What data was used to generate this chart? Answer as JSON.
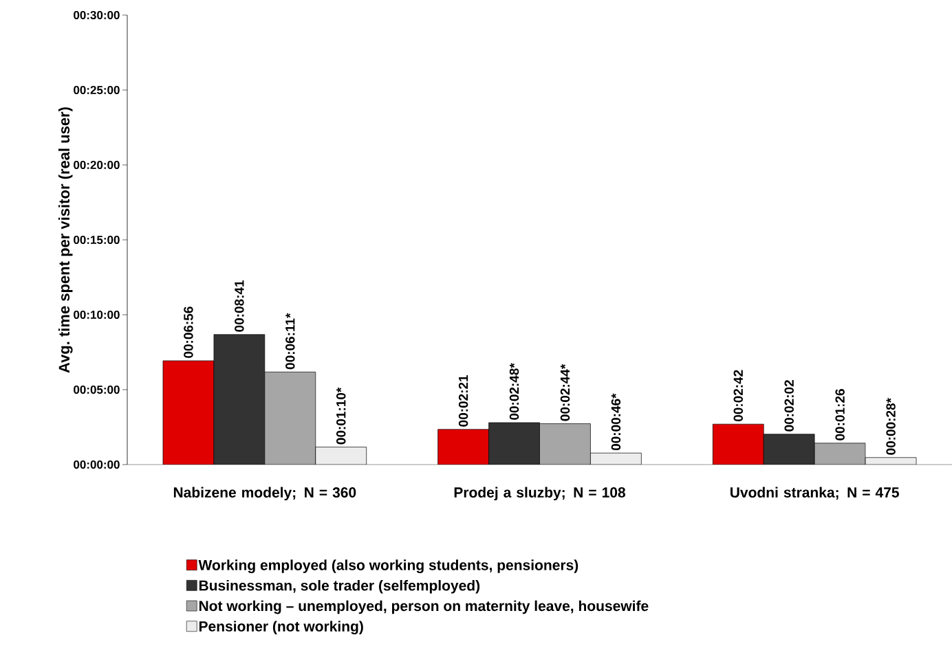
{
  "chart_data": {
    "type": "bar",
    "ylabel": "Avg. time spent per visitor (real user)",
    "categories": [
      "Nabizene modely; N = 360",
      "Prodej a sluzby; N = 108",
      "Uvodni stranka; N = 475"
    ],
    "series": [
      {
        "name": "Working employed (also working students, pensioners)",
        "color": "#e00000",
        "values": [
          6.93,
          2.35,
          2.7
        ],
        "value_labels": [
          "00:06:56",
          "00:02:21",
          "00:02:42"
        ]
      },
      {
        "name": "Businessman, sole trader (selfemployed)",
        "color": "#333333",
        "values": [
          8.68,
          2.8,
          2.03
        ],
        "value_labels": [
          "00:08:41",
          "00:02:48*",
          "00:02:02"
        ]
      },
      {
        "name": "Not working – unemployed, person on maternity leave, housewife",
        "color": "#a6a6a6",
        "values": [
          6.18,
          2.73,
          1.43
        ],
        "value_labels": [
          "00:06:11*",
          "00:02:44*",
          "00:01:26"
        ]
      },
      {
        "name": "Pensioner (not working)",
        "color": "#ececec",
        "values": [
          1.17,
          0.77,
          0.47
        ],
        "value_labels": [
          "00:01:10*",
          "00:00:46*",
          "00:00:28*"
        ]
      }
    ],
    "ylim": [
      0,
      30
    ],
    "yticks": [
      {
        "value": 0,
        "label": "00:00:00"
      },
      {
        "value": 5,
        "label": "00:05:00"
      },
      {
        "value": 10,
        "label": "00:10:00"
      },
      {
        "value": 15,
        "label": "00:15:00"
      },
      {
        "value": 20,
        "label": "00:20:00"
      },
      {
        "value": 25,
        "label": "00:25:00"
      },
      {
        "value": 30,
        "label": "00:30:00"
      }
    ],
    "grid": false,
    "legend": "bottom"
  }
}
